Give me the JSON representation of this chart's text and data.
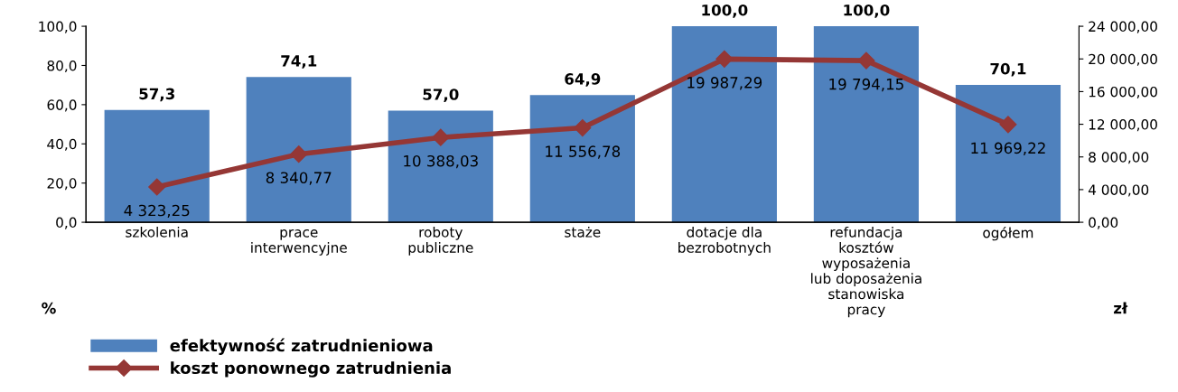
{
  "chart_data": {
    "type": "bar",
    "categories": [
      "szkolenia",
      "prace\ninterwencyjne",
      "roboty\npubliczne",
      "staże",
      "dotacje dla\nbezrobotnych",
      "refundacja\nkosztów\nwyposażenia\nlub doposażenia\nstanowiska\npracy",
      "ogółem"
    ],
    "series": [
      {
        "name": "efektywność zatrudnieniowa",
        "color": "#4f81bd",
        "values": [
          57.3,
          74.1,
          57.0,
          64.9,
          100.0,
          100.0,
          70.1
        ],
        "value_labels": [
          "57,3",
          "74,1",
          "57,0",
          "64,9",
          "100,0",
          "100,0",
          "70,1"
        ]
      },
      {
        "name": "koszt ponownego zatrudnienia",
        "type": "line",
        "axis": "y2",
        "color": "#953735",
        "marker": "diamond",
        "values": [
          4323.25,
          8340.77,
          10388.03,
          11556.78,
          19987.29,
          19794.15,
          11969.22
        ],
        "value_labels": [
          "4 323,25",
          "8 340,77",
          "10 388,03",
          "11 556,78",
          "19 987,29",
          "19 794,15",
          "11 969,22"
        ]
      }
    ],
    "ylabel": "%",
    "y2label": "zł",
    "ylim": [
      0,
      100
    ],
    "yticks": [
      {
        "value": 0,
        "label": "0,0"
      },
      {
        "value": 20,
        "label": "20,0"
      },
      {
        "value": 40,
        "label": "40,0"
      },
      {
        "value": 60,
        "label": "60,0"
      },
      {
        "value": 80,
        "label": "80,0"
      },
      {
        "value": 100,
        "label": "100,0"
      }
    ],
    "y2lim": [
      0,
      24000
    ],
    "y2ticks": [
      {
        "value": 0,
        "label": "0,00"
      },
      {
        "value": 4000,
        "label": "4 000,00"
      },
      {
        "value": 8000,
        "label": "8 000,00"
      },
      {
        "value": 12000,
        "label": "12 000,00"
      },
      {
        "value": 16000,
        "label": "16 000,00"
      },
      {
        "value": 20000,
        "label": "20 000,00"
      },
      {
        "value": 24000,
        "label": "24 000,00"
      }
    ],
    "legend": "bottom left",
    "grid": false
  }
}
